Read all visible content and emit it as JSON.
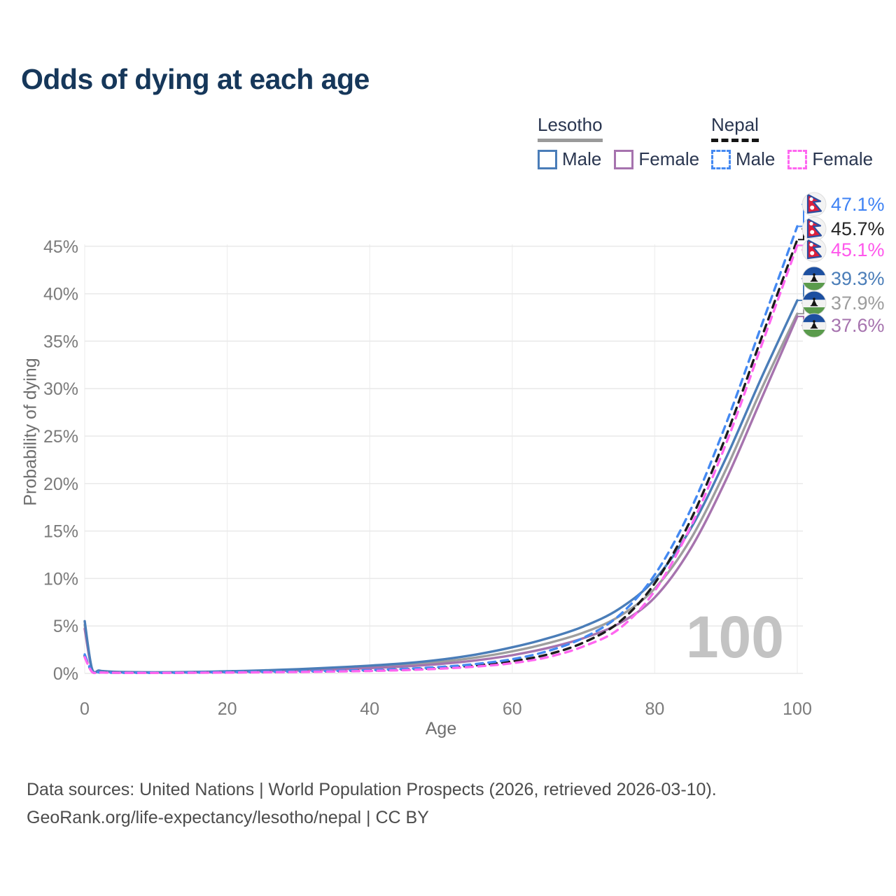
{
  "header": {
    "title": "Odds of dying at each age"
  },
  "legend": {
    "groups": [
      {
        "id": "lesotho",
        "title": "Lesotho",
        "male_label": "Male",
        "female_label": "Female"
      },
      {
        "id": "nepal",
        "title": "Nepal",
        "male_label": "Male",
        "female_label": "Female"
      }
    ]
  },
  "axes": {
    "x_title": "Age",
    "y_title": "Probability of dying"
  },
  "watermark": "100",
  "footer": {
    "line1": "Data sources: United Nations | World Population Prospects (2026, retrieved 2026-03-10).",
    "line2": "GeoRank.org/life-expectancy/lesotho/nepal | CC BY"
  },
  "chart_data": {
    "type": "line",
    "title": "Odds of dying at each age",
    "xlabel": "Age",
    "ylabel": "Probability of dying",
    "xlim": [
      0,
      100
    ],
    "ylim_percent": [
      0,
      48
    ],
    "x_ticks": [
      0,
      20,
      40,
      60,
      80,
      100
    ],
    "y_ticks": [
      "0%",
      "5%",
      "10%",
      "15%",
      "20%",
      "25%",
      "30%",
      "35%",
      "40%",
      "45%"
    ],
    "grid": true,
    "legend_position": "top-right",
    "ages": [
      0,
      1,
      2,
      3,
      5,
      10,
      15,
      20,
      25,
      30,
      35,
      40,
      45,
      50,
      55,
      60,
      65,
      70,
      75,
      80,
      85,
      90,
      95,
      100
    ],
    "series": [
      {
        "name": "Lesotho",
        "country": "Lesotho",
        "sex": "both",
        "color": "#9e9e9e",
        "label_color": "#9c9c9c",
        "dash": "solid",
        "flag": "lesotho",
        "end_label": "37.9%",
        "values": [
          5.1,
          0.5,
          0.28,
          0.2,
          0.13,
          0.1,
          0.13,
          0.18,
          0.27,
          0.38,
          0.52,
          0.69,
          0.9,
          1.22,
          1.68,
          2.32,
          3.18,
          4.3,
          6.0,
          8.95,
          14.1,
          21.5,
          30.0,
          37.9
        ]
      },
      {
        "name": "Lesotho Female",
        "country": "Lesotho",
        "sex": "female",
        "color": "#a673ae",
        "label_color": "#a673ae",
        "dash": "solid",
        "flag": "lesotho",
        "end_label": "37.6%",
        "values": [
          4.7,
          0.45,
          0.25,
          0.18,
          0.12,
          0.09,
          0.11,
          0.15,
          0.22,
          0.31,
          0.42,
          0.56,
          0.74,
          1.0,
          1.38,
          1.92,
          2.68,
          3.72,
          5.25,
          8.0,
          13.1,
          20.4,
          29.0,
          37.6
        ]
      },
      {
        "name": "Lesotho Male",
        "country": "Lesotho",
        "sex": "male",
        "color": "#4a7db8",
        "label_color": "#4a7db8",
        "dash": "solid",
        "flag": "lesotho",
        "end_label": "39.3%",
        "values": [
          5.5,
          0.55,
          0.3,
          0.22,
          0.15,
          0.12,
          0.15,
          0.22,
          0.32,
          0.45,
          0.62,
          0.82,
          1.07,
          1.45,
          2.0,
          2.75,
          3.7,
          4.95,
          6.8,
          9.9,
          15.2,
          22.7,
          31.2,
          39.3
        ]
      },
      {
        "name": "Nepal",
        "country": "Nepal",
        "sex": "both",
        "color": "#1c1c1c",
        "label_color": "#262626",
        "dash": "dashed",
        "flag": "nepal",
        "end_label": "45.7%",
        "values": [
          1.85,
          0.2,
          0.11,
          0.09,
          0.07,
          0.05,
          0.08,
          0.11,
          0.14,
          0.18,
          0.23,
          0.3,
          0.41,
          0.58,
          0.85,
          1.28,
          2.0,
          3.25,
          5.4,
          9.5,
          16.1,
          25.0,
          35.4,
          45.7
        ]
      },
      {
        "name": "Nepal Male",
        "country": "Nepal",
        "sex": "male",
        "color": "#4489f2",
        "label_color": "#3e82f4",
        "dash": "dashed",
        "flag": "nepal",
        "end_label": "47.1%",
        "values": [
          2.0,
          0.22,
          0.12,
          0.09,
          0.07,
          0.06,
          0.09,
          0.13,
          0.17,
          0.21,
          0.27,
          0.35,
          0.48,
          0.68,
          1.0,
          1.5,
          2.35,
          3.75,
          6.1,
          10.4,
          17.2,
          26.3,
          36.7,
          47.1
        ]
      },
      {
        "name": "Nepal Female",
        "country": "Nepal",
        "sex": "female",
        "color": "#ff66f0",
        "label_color": "#ff57ec",
        "dash": "dashed",
        "flag": "nepal",
        "end_label": "45.1%",
        "values": [
          1.7,
          0.18,
          0.1,
          0.08,
          0.06,
          0.05,
          0.07,
          0.09,
          0.12,
          0.15,
          0.2,
          0.26,
          0.35,
          0.5,
          0.72,
          1.08,
          1.72,
          2.85,
          4.7,
          8.7,
          15.4,
          24.2,
          34.6,
          45.1
        ]
      }
    ]
  }
}
